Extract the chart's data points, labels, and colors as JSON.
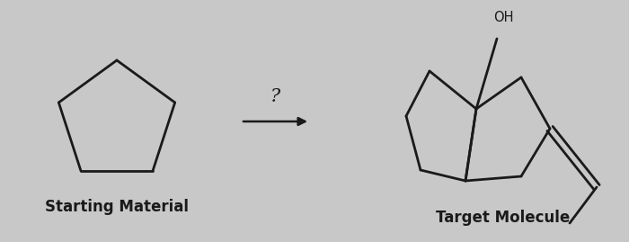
{
  "background_color": "#c8c8c8",
  "line_color": "#1a1a1a",
  "line_width": 2.0,
  "font_size_labels": 12,
  "font_size_oh": 10.5,
  "label_starting_material": "Starting Material",
  "label_target": "Target Molecule",
  "question_mark": "?"
}
